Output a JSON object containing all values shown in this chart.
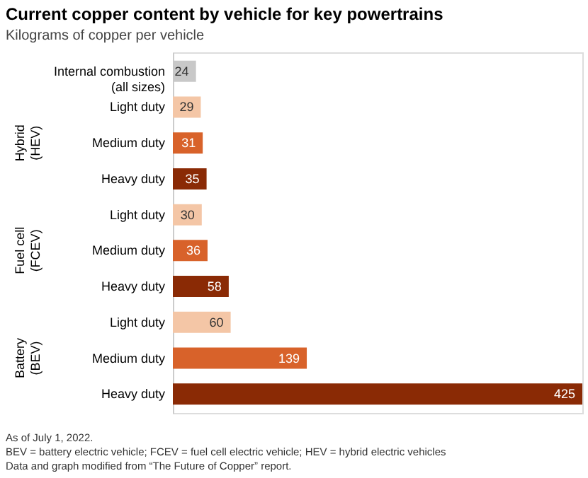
{
  "chart_data": {
    "type": "bar",
    "orientation": "horizontal",
    "title": "Current copper content by vehicle for key powertrains",
    "subtitle": "Kilograms of copper per vehicle",
    "categories": [
      "Internal combustion\n(all sizes)",
      "Light duty",
      "Medium duty",
      "Heavy duty",
      "Light duty",
      "Medium duty",
      "Heavy duty",
      "Light duty",
      "Medium duty",
      "Heavy duty"
    ],
    "values": [
      24,
      29,
      31,
      35,
      30,
      36,
      58,
      60,
      139,
      425
    ],
    "colors": [
      "#c8c8c8",
      "#f4c6a6",
      "#d8622a",
      "#8a2a05",
      "#f4c6a6",
      "#d8622a",
      "#8a2a05",
      "#f4c6a6",
      "#d8622a",
      "#8a2a05"
    ],
    "xlim": [
      0,
      425
    ],
    "data_labels": true,
    "tick_labels": "y",
    "grid": false,
    "annotations": [
      "Hybrid\n(HEV)",
      "Fuel cell\n(FCEV)",
      "Battery\n(BEV)",
      "As of July 1, 2022.",
      "BEV = battery electric vehicle; FCEV = fuel cell electric vehicle; HEV = hybrid electric vehicles",
      "Data and graph modified from “The Future of Copper” report."
    ]
  }
}
